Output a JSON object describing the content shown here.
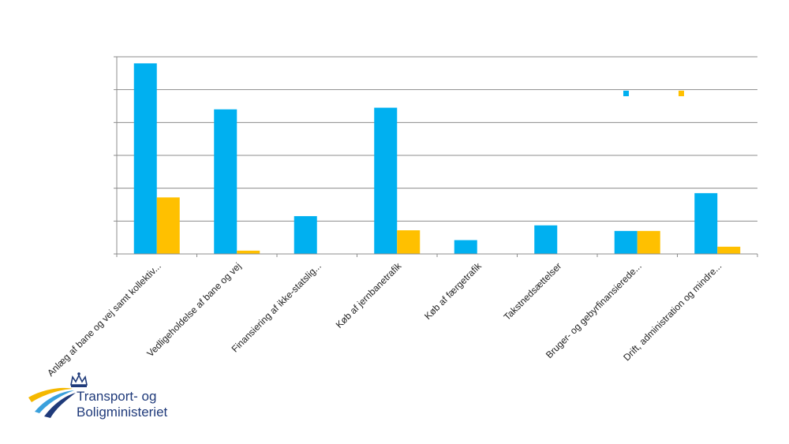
{
  "chart_data": {
    "type": "bar",
    "categories": [
      "Anlæg af bane og vej samt kollektiv...",
      "Vedligeholdelse af bane og vej",
      "Finansiering af ikke-statslig...",
      "Køb af jernbanetrafik",
      "Køb af færgetrafik",
      "Takstnedsættelser",
      "Bruger- og gebyrfinansierede...",
      "Drift, administration og mindre..."
    ],
    "series": [
      {
        "color": "#00b0f0",
        "values": [
          5.8,
          4.4,
          1.15,
          4.45,
          0.42,
          0.87,
          0.7,
          1.85
        ]
      },
      {
        "color": "#ffc000",
        "values": [
          1.72,
          0.1,
          0.0,
          0.72,
          0.0,
          0.0,
          0.7,
          0.22
        ]
      }
    ],
    "ylim": [
      0,
      6
    ],
    "y_gridlines": [
      0,
      1,
      2,
      3,
      4,
      5,
      6
    ],
    "grid": true,
    "legend": "top-right",
    "legend_entries_labeled": false
  },
  "logo": {
    "line1": "Transport- og",
    "line2": "Boligministeriet",
    "brand_blue": "#1f3a7a",
    "brand_yellow": "#f5b800",
    "brand_lightblue": "#3aa0dc"
  }
}
